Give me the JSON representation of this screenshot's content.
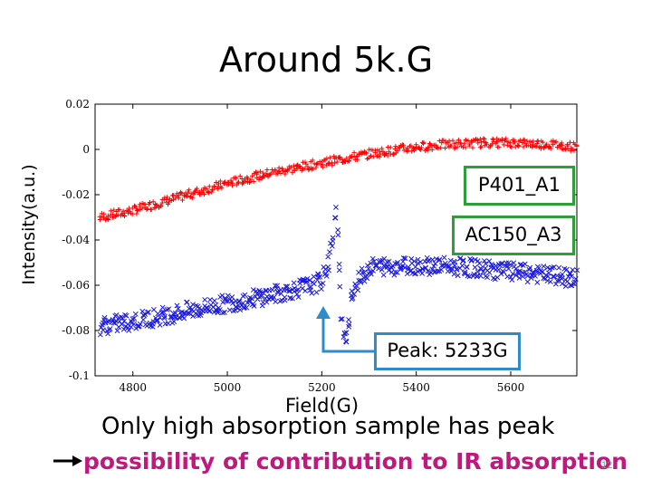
{
  "title": "Around 5k.G",
  "note": "Only high absorption sample has peak",
  "conclusion": "possibility of contribution to IR absorption",
  "page_number": "12",
  "annotations": {
    "peak": "Peak: 5233G",
    "box_color": "#2e9e38",
    "peak_box_color": "#2f8cc8",
    "conclusion_color": "#c0187e"
  },
  "chart_data": {
    "type": "scatter",
    "xlabel": "Field(G)",
    "ylabel": "Intensity(a.u.)",
    "xlim": [
      4720,
      5740
    ],
    "ylim": [
      -0.1,
      0.02
    ],
    "xticks": [
      4800,
      5000,
      5200,
      5400,
      5600
    ],
    "yticks": [
      0.02,
      0,
      -0.02,
      -0.04,
      -0.06,
      -0.08,
      -0.1
    ],
    "ytick_labels": [
      "0.02",
      "0",
      "-0.02",
      "-0.04",
      "-0.06",
      "-0.08",
      "-0.1"
    ],
    "peak_field": 5233,
    "series": [
      {
        "name": "P401_A1",
        "marker": "+",
        "color": "#ff0000",
        "x": [
          4730,
          4800,
          4900,
          5000,
          5100,
          5200,
          5300,
          5400,
          5450,
          5500,
          5550,
          5600,
          5650,
          5700,
          5740
        ],
        "y": [
          -0.03,
          -0.027,
          -0.021,
          -0.015,
          -0.01,
          -0.006,
          -0.002,
          0.001,
          0.002,
          0.0025,
          0.003,
          0.003,
          0.0025,
          0.002,
          0.001
        ]
      },
      {
        "name": "AC150_A3",
        "marker": "x",
        "color": "#1a1adc",
        "x": [
          4730,
          4800,
          4900,
          5000,
          5100,
          5180,
          5200,
          5215,
          5225,
          5233,
          5240,
          5250,
          5265,
          5300,
          5400,
          5500,
          5600,
          5700,
          5740
        ],
        "y": [
          -0.078,
          -0.076,
          -0.072,
          -0.068,
          -0.064,
          -0.06,
          -0.058,
          -0.05,
          -0.035,
          -0.025,
          -0.074,
          -0.086,
          -0.062,
          -0.052,
          -0.051,
          -0.052,
          -0.054,
          -0.056,
          -0.057
        ]
      }
    ]
  }
}
